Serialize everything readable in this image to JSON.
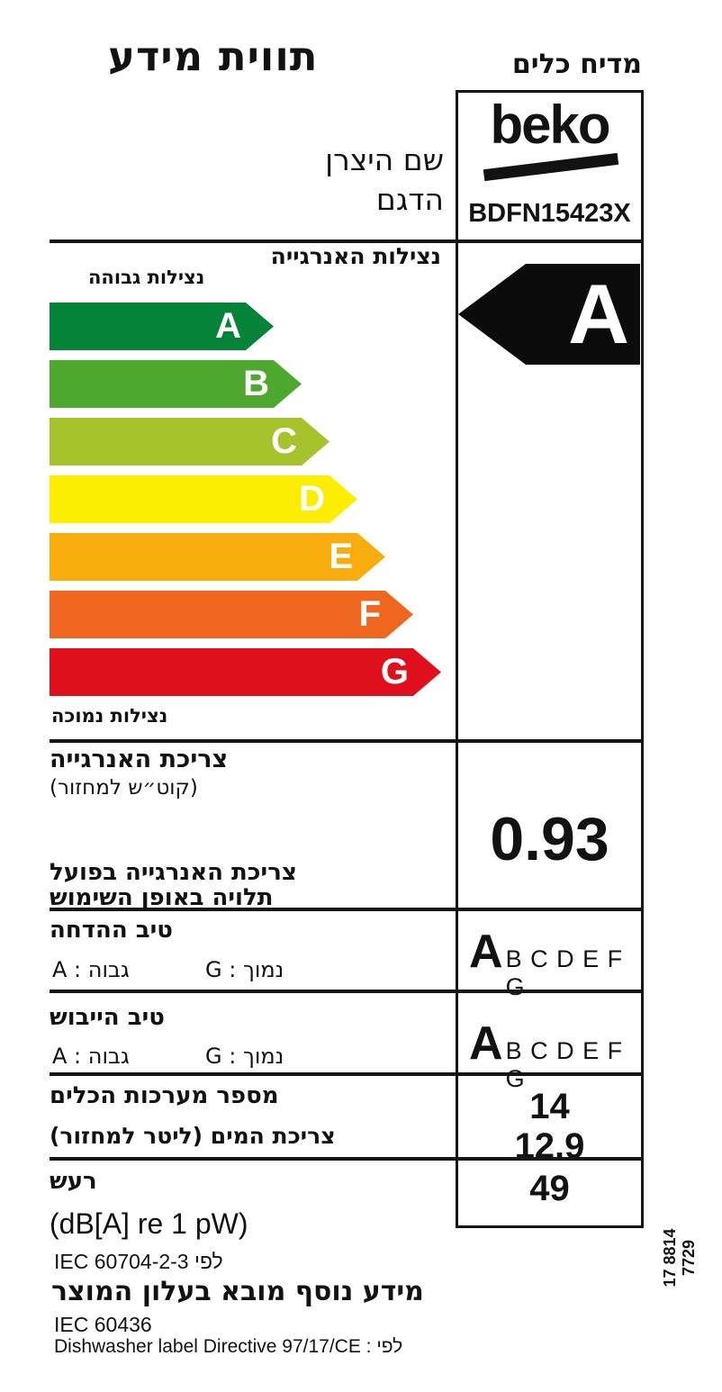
{
  "label": {
    "title": "תווית מידע",
    "appliance": "מדיח כלים",
    "brand": "beko",
    "model": "BDFN15423X",
    "manufacturer_caption": "שם היצרן",
    "model_caption": "הדגם"
  },
  "efficiency": {
    "title": "נצילות האנרגייה",
    "high_label": "נצילות גבוהה",
    "low_label": "נצילות נמוכה",
    "rating": "A",
    "rating_arrow_color": "#0b0b0b",
    "scale": [
      {
        "grade": "A",
        "color": "#048339"
      },
      {
        "grade": "B",
        "color": "#4ea82e"
      },
      {
        "grade": "C",
        "color": "#a6c32b"
      },
      {
        "grade": "D",
        "color": "#fcee02"
      },
      {
        "grade": "E",
        "color": "#f9ac0d"
      },
      {
        "grade": "F",
        "color": "#ef671e"
      },
      {
        "grade": "G",
        "color": "#df0f1c"
      }
    ]
  },
  "energy": {
    "title": "צריכת האנרגייה",
    "unit": "(קוט״ש למחזור)",
    "value": "0.93",
    "note_line1": "צריכת האנרגייה בפועל",
    "note_line2": "תלויה באופן השימוש"
  },
  "washing": {
    "title": "טיב ההדחה",
    "high": "גבוה : A",
    "low": "נמוך : G",
    "rating": "A",
    "scale_rest": "B C D E F G"
  },
  "drying": {
    "title": "טיב הייבוש",
    "high": "גבוה : A",
    "low": "נמוך : G",
    "rating": "A",
    "scale_rest": "B C D E F G"
  },
  "capacity": {
    "settings_label": "מספר מערכות הכלים",
    "settings_value": "14",
    "water_label": "צריכת המים (ליטר למחזור)",
    "water_value": "12.9"
  },
  "noise": {
    "label": "רעש",
    "value": "49",
    "unit": "(dB[A] re 1 pW)",
    "standard": "IEC 60704-2-3 לפי"
  },
  "footer": {
    "more_info": "מידע נוסף מובא בעלון המוצר",
    "standard": "IEC 60436",
    "directive": "Dishwasher label Directive 97/17/CE : לפי",
    "part_number": "17 8814 7729"
  }
}
